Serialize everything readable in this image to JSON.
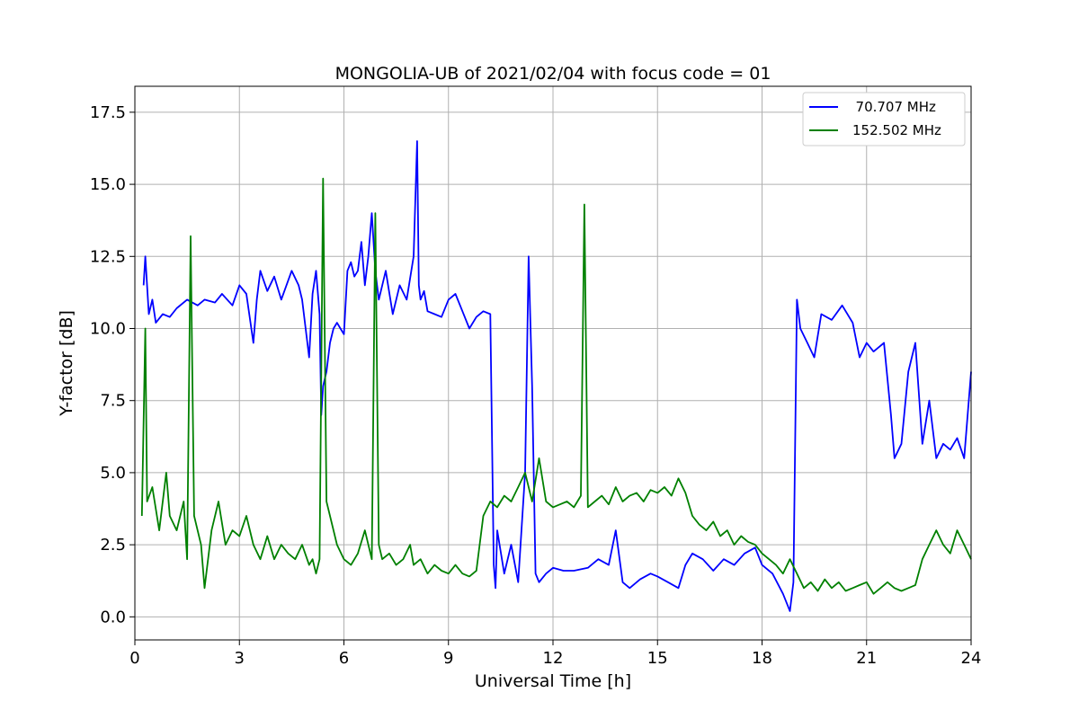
{
  "chart_data": {
    "type": "line",
    "title": "MONGOLIA-UB of 2021/02/04 with focus code = 01",
    "xlabel": "Universal Time [h]",
    "ylabel": "Y-factor [dB]",
    "xlim": [
      0,
      24
    ],
    "ylim": [
      -0.8,
      18.4
    ],
    "xticks": [
      0,
      3,
      6,
      9,
      12,
      15,
      18,
      21,
      24
    ],
    "xtick_labels": [
      "0",
      "3",
      "6",
      "9",
      "12",
      "15",
      "18",
      "21",
      "24"
    ],
    "yticks": [
      0.0,
      2.5,
      5.0,
      7.5,
      10.0,
      12.5,
      15.0,
      17.5
    ],
    "ytick_labels": [
      "0.0",
      "2.5",
      "5.0",
      "7.5",
      "10.0",
      "12.5",
      "15.0",
      "17.5"
    ],
    "grid": true,
    "legend_position": "top-right",
    "series": [
      {
        "name": "  70.707 MHz",
        "color": "#0000ff",
        "x": [
          0.25,
          0.3,
          0.4,
          0.5,
          0.6,
          0.8,
          1.0,
          1.2,
          1.5,
          1.8,
          2.0,
          2.3,
          2.5,
          2.8,
          3.0,
          3.2,
          3.4,
          3.5,
          3.6,
          3.8,
          4.0,
          4.2,
          4.5,
          4.7,
          4.8,
          5.0,
          5.1,
          5.2,
          5.3,
          5.35,
          5.4,
          5.5,
          5.6,
          5.7,
          5.8,
          5.9,
          6.0,
          6.1,
          6.2,
          6.3,
          6.4,
          6.5,
          6.6,
          6.7,
          6.8,
          6.9,
          7.0,
          7.2,
          7.4,
          7.6,
          7.8,
          8.0,
          8.1,
          8.15,
          8.2,
          8.3,
          8.4,
          8.6,
          8.8,
          9.0,
          9.2,
          9.4,
          9.6,
          9.8,
          10.0,
          10.2,
          10.3,
          10.35,
          10.4,
          10.6,
          10.8,
          11.0,
          11.2,
          11.3,
          11.4,
          11.5,
          11.6,
          11.8,
          12.0,
          12.3,
          12.6,
          13.0,
          13.3,
          13.6,
          13.8,
          14.0,
          14.2,
          14.5,
          14.8,
          15.0,
          15.3,
          15.6,
          15.8,
          16.0,
          16.3,
          16.6,
          16.9,
          17.2,
          17.5,
          17.8,
          18.0,
          18.3,
          18.6,
          18.8,
          18.9,
          19.0,
          19.1,
          19.3,
          19.5,
          19.7,
          20.0,
          20.3,
          20.6,
          20.8,
          21.0,
          21.2,
          21.5,
          21.7,
          21.8,
          22.0,
          22.2,
          22.4,
          22.6,
          22.8,
          23.0,
          23.2,
          23.4,
          23.6,
          23.8,
          24.0
        ],
        "y": [
          11.5,
          12.5,
          10.5,
          11.0,
          10.2,
          10.5,
          10.4,
          10.7,
          11.0,
          10.8,
          11.0,
          10.9,
          11.2,
          10.8,
          11.5,
          11.2,
          9.5,
          11.0,
          12.0,
          11.3,
          11.8,
          11.0,
          12.0,
          11.5,
          11.0,
          9.0,
          11.2,
          12.0,
          10.5,
          7.0,
          8.0,
          8.5,
          9.5,
          10.0,
          10.2,
          10.0,
          9.8,
          12.0,
          12.3,
          11.8,
          12.0,
          13.0,
          11.5,
          12.5,
          14.0,
          12.0,
          11.0,
          12.0,
          10.5,
          11.5,
          11.0,
          12.5,
          16.5,
          11.5,
          11.0,
          11.3,
          10.6,
          10.5,
          10.4,
          11.0,
          11.2,
          10.6,
          10.0,
          10.4,
          10.6,
          10.5,
          1.8,
          1.0,
          3.0,
          1.5,
          2.5,
          1.2,
          5.0,
          12.5,
          8.0,
          1.5,
          1.2,
          1.5,
          1.7,
          1.6,
          1.6,
          1.7,
          2.0,
          1.8,
          3.0,
          1.2,
          1.0,
          1.3,
          1.5,
          1.4,
          1.2,
          1.0,
          1.8,
          2.2,
          2.0,
          1.6,
          2.0,
          1.8,
          2.2,
          2.4,
          1.8,
          1.5,
          0.8,
          0.2,
          1.2,
          11.0,
          10.0,
          9.5,
          9.0,
          10.5,
          10.3,
          10.8,
          10.2,
          9.0,
          9.5,
          9.2,
          9.5,
          7.0,
          5.5,
          6.0,
          8.5,
          9.5,
          6.0,
          7.5,
          5.5,
          6.0,
          5.8,
          6.2,
          5.5,
          8.5
        ]
      },
      {
        "name": "152.502 MHz",
        "color": "#008000",
        "x": [
          0.2,
          0.3,
          0.35,
          0.5,
          0.7,
          0.9,
          1.0,
          1.2,
          1.4,
          1.5,
          1.6,
          1.7,
          1.9,
          2.0,
          2.2,
          2.4,
          2.6,
          2.8,
          3.0,
          3.2,
          3.4,
          3.6,
          3.8,
          4.0,
          4.2,
          4.4,
          4.6,
          4.8,
          5.0,
          5.1,
          5.2,
          5.3,
          5.4,
          5.5,
          5.6,
          5.8,
          6.0,
          6.2,
          6.4,
          6.6,
          6.8,
          6.9,
          7.0,
          7.1,
          7.3,
          7.5,
          7.7,
          7.9,
          8.0,
          8.2,
          8.4,
          8.6,
          8.8,
          9.0,
          9.2,
          9.4,
          9.6,
          9.8,
          10.0,
          10.2,
          10.4,
          10.6,
          10.8,
          11.0,
          11.2,
          11.4,
          11.6,
          11.8,
          12.0,
          12.2,
          12.4,
          12.6,
          12.8,
          12.9,
          13.0,
          13.2,
          13.4,
          13.6,
          13.8,
          14.0,
          14.2,
          14.4,
          14.6,
          14.8,
          15.0,
          15.2,
          15.4,
          15.6,
          15.8,
          16.0,
          16.2,
          16.4,
          16.6,
          16.8,
          17.0,
          17.2,
          17.4,
          17.6,
          17.8,
          18.0,
          18.2,
          18.4,
          18.6,
          18.8,
          19.0,
          19.2,
          19.4,
          19.6,
          19.8,
          20.0,
          20.2,
          20.4,
          20.6,
          20.8,
          21.0,
          21.2,
          21.4,
          21.6,
          21.8,
          22.0,
          22.2,
          22.4,
          22.6,
          22.8,
          23.0,
          23.2,
          23.4,
          23.6,
          23.8,
          24.0
        ],
        "y": [
          3.5,
          10.0,
          4.0,
          4.5,
          3.0,
          5.0,
          3.5,
          3.0,
          4.0,
          2.0,
          13.2,
          3.5,
          2.5,
          1.0,
          3.0,
          4.0,
          2.5,
          3.0,
          2.8,
          3.5,
          2.5,
          2.0,
          2.8,
          2.0,
          2.5,
          2.2,
          2.0,
          2.5,
          1.8,
          2.0,
          1.5,
          2.0,
          15.2,
          4.0,
          3.5,
          2.5,
          2.0,
          1.8,
          2.2,
          3.0,
          2.0,
          14.0,
          2.5,
          2.0,
          2.2,
          1.8,
          2.0,
          2.5,
          1.8,
          2.0,
          1.5,
          1.8,
          1.6,
          1.5,
          1.8,
          1.5,
          1.4,
          1.6,
          3.5,
          4.0,
          3.8,
          4.2,
          4.0,
          4.5,
          5.0,
          4.0,
          5.5,
          4.0,
          3.8,
          3.9,
          4.0,
          3.8,
          4.2,
          14.3,
          3.8,
          4.0,
          4.2,
          3.9,
          4.5,
          4.0,
          4.2,
          4.3,
          4.0,
          4.4,
          4.3,
          4.5,
          4.2,
          4.8,
          4.3,
          3.5,
          3.2,
          3.0,
          3.3,
          2.8,
          3.0,
          2.5,
          2.8,
          2.6,
          2.5,
          2.2,
          2.0,
          1.8,
          1.5,
          2.0,
          1.5,
          1.0,
          1.2,
          0.9,
          1.3,
          1.0,
          1.2,
          0.9,
          1.0,
          1.1,
          1.2,
          0.8,
          1.0,
          1.2,
          1.0,
          0.9,
          1.0,
          1.1,
          2.0,
          2.5,
          3.0,
          2.5,
          2.2,
          3.0,
          2.5,
          2.0
        ]
      }
    ]
  }
}
